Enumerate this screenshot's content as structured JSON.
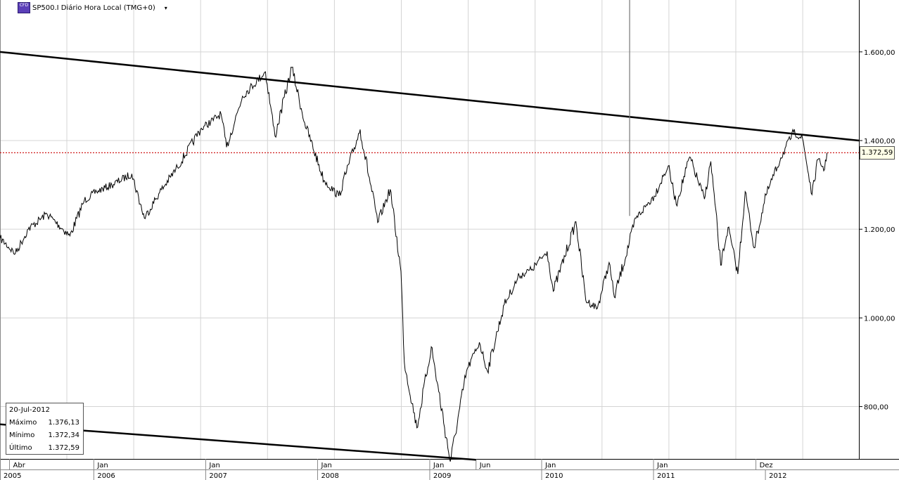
{
  "title": {
    "icon_name": "cfd-instrument-icon",
    "icon_text": "CFD",
    "text": "SP500.I Diário Hora Local (TMG+0)",
    "dropdown_icon": "caret-down-icon",
    "dropdown_glyph": "▾"
  },
  "info_box": {
    "date": "20-Jul-2012",
    "rows": [
      {
        "label": "Máximo",
        "value": "1.376,13"
      },
      {
        "label": "Mínimo",
        "value": "1.372,34"
      },
      {
        "label": "Último",
        "value": "1.372,59"
      }
    ]
  },
  "last_price_label": "1.372,59",
  "colors": {
    "price_line": "#000000",
    "trendline": "#000000",
    "last_price_line": "#cc0000",
    "grid": "#d4d4d4",
    "axis": "#000000"
  },
  "chart_data": {
    "type": "line",
    "series": [
      {
        "values_by_date": [
          [
            "2005-03-01",
            1180
          ],
          [
            "2005-04-20",
            1145
          ],
          [
            "2005-06-01",
            1200
          ],
          [
            "2005-08-01",
            1235
          ],
          [
            "2005-10-15",
            1185
          ],
          [
            "2005-12-01",
            1265
          ],
          [
            "2006-01-10",
            1285
          ],
          [
            "2006-03-01",
            1300
          ],
          [
            "2006-05-05",
            1325
          ],
          [
            "2006-06-15",
            1225
          ],
          [
            "2006-08-01",
            1280
          ],
          [
            "2006-10-01",
            1340
          ],
          [
            "2006-12-15",
            1425
          ],
          [
            "2007-02-20",
            1460
          ],
          [
            "2007-03-10",
            1385
          ],
          [
            "2007-05-01",
            1500
          ],
          [
            "2007-07-15",
            1555
          ],
          [
            "2007-08-15",
            1410
          ],
          [
            "2007-10-09",
            1565
          ],
          [
            "2007-11-20",
            1440
          ],
          [
            "2008-01-22",
            1310
          ],
          [
            "2008-03-10",
            1275
          ],
          [
            "2008-05-19",
            1425
          ],
          [
            "2008-07-15",
            1215
          ],
          [
            "2008-08-25",
            1290
          ],
          [
            "2008-09-29",
            1105
          ],
          [
            "2008-10-10",
            900
          ],
          [
            "2008-11-20",
            752
          ],
          [
            "2009-01-06",
            935
          ],
          [
            "2009-03-09",
            676
          ],
          [
            "2009-05-01",
            880
          ],
          [
            "2009-06-12",
            945
          ],
          [
            "2009-07-08",
            880
          ],
          [
            "2009-09-01",
            1030
          ],
          [
            "2009-10-20",
            1095
          ],
          [
            "2009-12-01",
            1110
          ],
          [
            "2010-01-19",
            1150
          ],
          [
            "2010-02-08",
            1060
          ],
          [
            "2010-04-23",
            1217
          ],
          [
            "2010-05-25",
            1040
          ],
          [
            "2010-07-02",
            1022
          ],
          [
            "2010-08-09",
            1125
          ],
          [
            "2010-08-26",
            1047
          ],
          [
            "2010-11-05",
            1225
          ],
          [
            "2011-01-03",
            1275
          ],
          [
            "2011-02-18",
            1343
          ],
          [
            "2011-03-16",
            1256
          ],
          [
            "2011-04-29",
            1363
          ],
          [
            "2011-06-16",
            1268
          ],
          [
            "2011-07-07",
            1353
          ],
          [
            "2011-08-08",
            1119
          ],
          [
            "2011-09-01",
            1204
          ],
          [
            "2011-10-03",
            1099
          ],
          [
            "2011-10-27",
            1285
          ],
          [
            "2011-11-25",
            1158
          ],
          [
            "2012-01-03",
            1277
          ],
          [
            "2012-02-20",
            1361
          ],
          [
            "2012-04-02",
            1419
          ],
          [
            "2012-05-01",
            1405
          ],
          [
            "2012-06-01",
            1278
          ],
          [
            "2012-06-20",
            1357
          ],
          [
            "2012-07-12",
            1335
          ],
          [
            "2012-07-20",
            1372.59
          ]
        ]
      }
    ],
    "y_ticks": [
      {
        "value": 1600,
        "label": "1.600,00"
      },
      {
        "value": 1400,
        "label": "1.400,00"
      },
      {
        "value": 1200,
        "label": "1.200,00"
      },
      {
        "value": 1000,
        "label": "1.000,00"
      },
      {
        "value": 800,
        "label": "800,00"
      }
    ],
    "ylim": [
      682,
      1717
    ],
    "x_axis_top_row": [
      {
        "label": "Abr",
        "date": "2005-04-01"
      },
      {
        "label": "Jan",
        "date": "2006-01-01"
      },
      {
        "label": "Jan",
        "date": "2007-01-01"
      },
      {
        "label": "Jan",
        "date": "2008-01-01"
      },
      {
        "label": "Jan",
        "date": "2009-01-01"
      },
      {
        "label": "Jun",
        "date": "2009-06-01"
      },
      {
        "label": "Jan",
        "date": "2010-01-01"
      },
      {
        "label": "Jan",
        "date": "2011-01-01"
      },
      {
        "label": "Dez",
        "date": "2011-12-01"
      }
    ],
    "x_axis_bottom_row": [
      {
        "label": "2005",
        "date": "2005-01-01"
      },
      {
        "label": "2006",
        "date": "2006-01-01"
      },
      {
        "label": "2007",
        "date": "2007-01-01"
      },
      {
        "label": "2008",
        "date": "2008-01-01"
      },
      {
        "label": "2009",
        "date": "2009-01-01"
      },
      {
        "label": "2010",
        "date": "2010-01-01"
      },
      {
        "label": "2011",
        "date": "2011-01-01"
      },
      {
        "label": "2012",
        "date": "2012-01-01"
      }
    ],
    "trendlines": [
      {
        "start": [
          "2005-03-01",
          1600
        ],
        "end": [
          "2012-11-01",
          1400
        ]
      },
      {
        "start": [
          "2005-03-01",
          760
        ],
        "end": [
          "2009-06-01",
          680
        ]
      }
    ],
    "vertical_spike": {
      "date": "2010-10-15",
      "from": 1230,
      "to": 1717
    },
    "last_price": 1372.59
  }
}
